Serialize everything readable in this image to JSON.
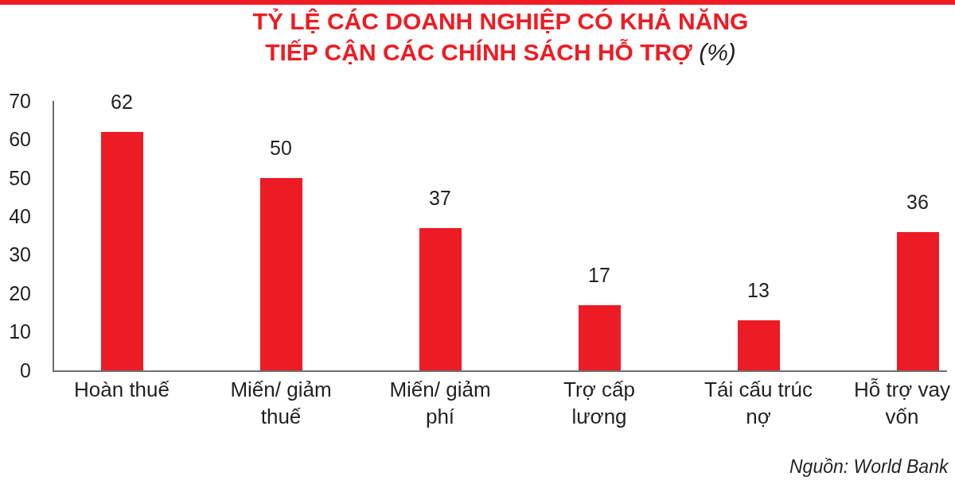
{
  "chart_data": {
    "type": "bar",
    "title": "TỶ LỆ CÁC DOANH NGHIỆP CÓ KHẢ NĂNG TIẾP CẬN CÁC CHÍNH SÁCH HỖ TRỢ (%)",
    "categories": [
      "Hoàn thuế",
      "Miến/ giảm thuế",
      "Miến/ giảm phí",
      "Trợ cấp lương",
      "Tái cấu trúc nợ",
      "Hỗ trợ vay vốn"
    ],
    "values": [
      62,
      50,
      37,
      17,
      13,
      36
    ],
    "color": "#ed1c24",
    "ylim": [
      0,
      70
    ],
    "yticks": [
      0,
      10,
      20,
      30,
      40,
      50,
      60,
      70
    ],
    "data_labels": true,
    "annotations": [
      "Nguồn: World Bank"
    ]
  }
}
